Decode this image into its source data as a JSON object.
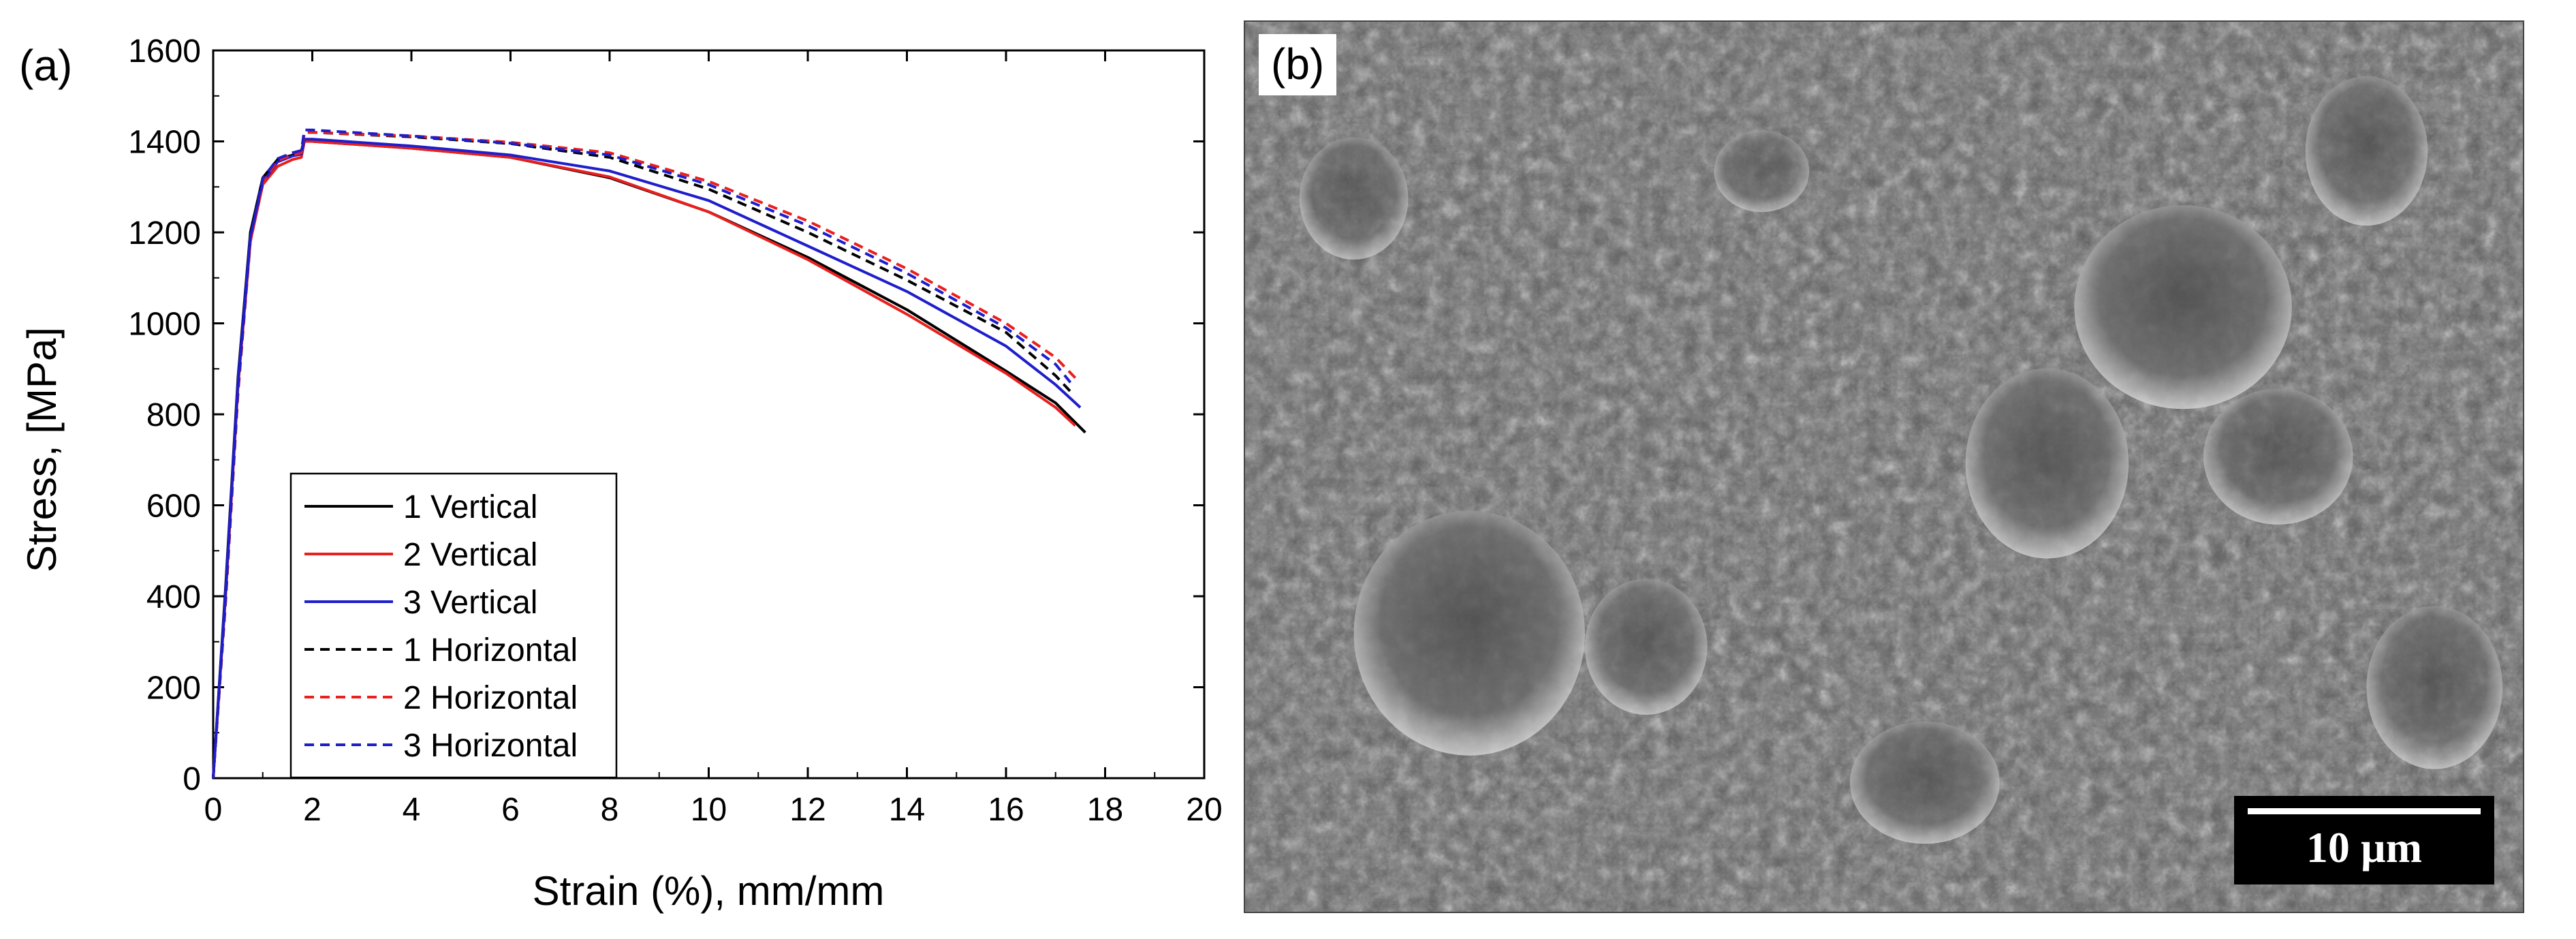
{
  "panel_a": {
    "label": "(a)"
  },
  "panel_b": {
    "label": "(b)",
    "scale_bar": "10 µm"
  },
  "chart_data": {
    "type": "line",
    "title": "",
    "xlabel": "Strain (%), mm/mm",
    "ylabel": "Stress, [MPa]",
    "xlim": [
      0,
      20
    ],
    "ylim": [
      0,
      1600
    ],
    "xticks": [
      0,
      2,
      4,
      6,
      8,
      10,
      12,
      14,
      16,
      18,
      20
    ],
    "yticks": [
      0,
      200,
      400,
      600,
      800,
      1000,
      1200,
      1400,
      1600
    ],
    "grid": false,
    "legend_position": "bottom-left",
    "series": [
      {
        "name": "1 Vertical",
        "color": "#000000",
        "dash": "solid",
        "points": [
          [
            0,
            0
          ],
          [
            0.25,
            420
          ],
          [
            0.5,
            880
          ],
          [
            0.75,
            1200
          ],
          [
            1.0,
            1320
          ],
          [
            1.3,
            1360
          ],
          [
            1.6,
            1370
          ],
          [
            1.77,
            1375
          ],
          [
            1.83,
            1400
          ],
          [
            2,
            1400
          ],
          [
            4,
            1385
          ],
          [
            6,
            1365
          ],
          [
            8,
            1320
          ],
          [
            10,
            1245
          ],
          [
            12,
            1145
          ],
          [
            14,
            1030
          ],
          [
            16,
            895
          ],
          [
            17,
            825
          ],
          [
            17.6,
            760
          ]
        ]
      },
      {
        "name": "2 Vertical",
        "color": "#e8201e",
        "dash": "solid",
        "points": [
          [
            0,
            0
          ],
          [
            0.25,
            400
          ],
          [
            0.5,
            860
          ],
          [
            0.75,
            1180
          ],
          [
            1.0,
            1305
          ],
          [
            1.3,
            1345
          ],
          [
            1.6,
            1360
          ],
          [
            1.78,
            1365
          ],
          [
            1.84,
            1400
          ],
          [
            2,
            1400
          ],
          [
            4,
            1385
          ],
          [
            6,
            1365
          ],
          [
            8,
            1322
          ],
          [
            10,
            1245
          ],
          [
            12,
            1140
          ],
          [
            14,
            1020
          ],
          [
            16,
            890
          ],
          [
            17,
            815
          ],
          [
            17.4,
            775
          ]
        ]
      },
      {
        "name": "3 Vertical",
        "color": "#1e1ecc",
        "dash": "solid",
        "points": [
          [
            0,
            0
          ],
          [
            0.25,
            410
          ],
          [
            0.5,
            870
          ],
          [
            0.75,
            1190
          ],
          [
            1.0,
            1310
          ],
          [
            1.3,
            1355
          ],
          [
            1.6,
            1368
          ],
          [
            1.78,
            1372
          ],
          [
            1.84,
            1405
          ],
          [
            2,
            1405
          ],
          [
            4,
            1390
          ],
          [
            6,
            1370
          ],
          [
            8,
            1335
          ],
          [
            10,
            1270
          ],
          [
            12,
            1170
          ],
          [
            14,
            1070
          ],
          [
            16,
            950
          ],
          [
            17,
            865
          ],
          [
            17.5,
            815
          ]
        ]
      },
      {
        "name": "1 Horizontal",
        "color": "#000000",
        "dash": "dashed",
        "points": [
          [
            0,
            0
          ],
          [
            0.25,
            390
          ],
          [
            0.5,
            850
          ],
          [
            0.75,
            1185
          ],
          [
            1.0,
            1315
          ],
          [
            1.3,
            1360
          ],
          [
            1.6,
            1372
          ],
          [
            1.78,
            1378
          ],
          [
            1.84,
            1420
          ],
          [
            2,
            1420
          ],
          [
            4,
            1410
          ],
          [
            6,
            1395
          ],
          [
            8,
            1365
          ],
          [
            10,
            1295
          ],
          [
            12,
            1200
          ],
          [
            14,
            1095
          ],
          [
            16,
            980
          ],
          [
            17,
            885
          ],
          [
            17.3,
            850
          ]
        ]
      },
      {
        "name": "2 Horizontal",
        "color": "#e8201e",
        "dash": "dashed",
        "points": [
          [
            0,
            0
          ],
          [
            0.25,
            385
          ],
          [
            0.5,
            845
          ],
          [
            0.75,
            1180
          ],
          [
            1.0,
            1310
          ],
          [
            1.3,
            1358
          ],
          [
            1.6,
            1370
          ],
          [
            1.78,
            1375
          ],
          [
            1.84,
            1420
          ],
          [
            2,
            1420
          ],
          [
            4,
            1412
          ],
          [
            6,
            1398
          ],
          [
            8,
            1375
          ],
          [
            10,
            1312
          ],
          [
            12,
            1225
          ],
          [
            14,
            1120
          ],
          [
            16,
            1000
          ],
          [
            17,
            925
          ],
          [
            17.4,
            880
          ]
        ]
      },
      {
        "name": "3 Horizontal",
        "color": "#1e1ecc",
        "dash": "dashed",
        "points": [
          [
            0,
            0
          ],
          [
            0.25,
            395
          ],
          [
            0.5,
            855
          ],
          [
            0.75,
            1188
          ],
          [
            1.0,
            1318
          ],
          [
            1.3,
            1362
          ],
          [
            1.6,
            1375
          ],
          [
            1.78,
            1380
          ],
          [
            1.84,
            1425
          ],
          [
            2,
            1425
          ],
          [
            4,
            1412
          ],
          [
            6,
            1396
          ],
          [
            8,
            1370
          ],
          [
            10,
            1305
          ],
          [
            12,
            1215
          ],
          [
            14,
            1110
          ],
          [
            16,
            990
          ],
          [
            17,
            910
          ],
          [
            17.3,
            870
          ]
        ]
      }
    ]
  }
}
